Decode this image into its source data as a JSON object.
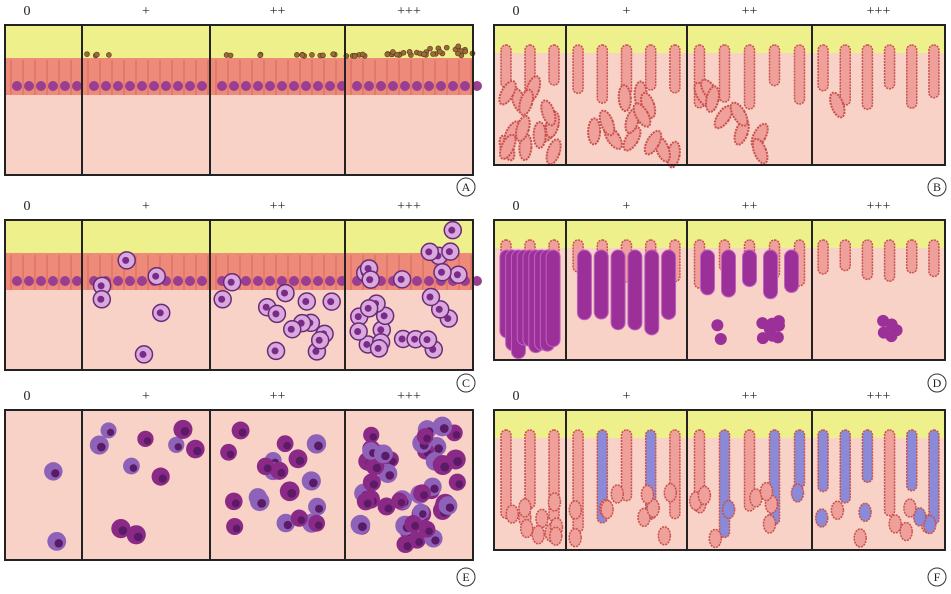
{
  "panels": [
    {
      "letter": "A",
      "grades": [
        "0",
        "+",
        "++",
        "+++"
      ]
    },
    {
      "letter": "B",
      "grades": [
        "0",
        "+",
        "++",
        "+++"
      ]
    },
    {
      "letter": "C",
      "grades": [
        "0",
        "+",
        "++",
        "+++"
      ]
    },
    {
      "letter": "D",
      "grades": [
        "0",
        "+",
        "++",
        "+++"
      ]
    },
    {
      "letter": "E",
      "grades": [
        "0",
        "+",
        "++",
        "+++"
      ]
    },
    {
      "letter": "F",
      "grades": [
        "0",
        "+",
        "++",
        "+++"
      ]
    }
  ]
}
